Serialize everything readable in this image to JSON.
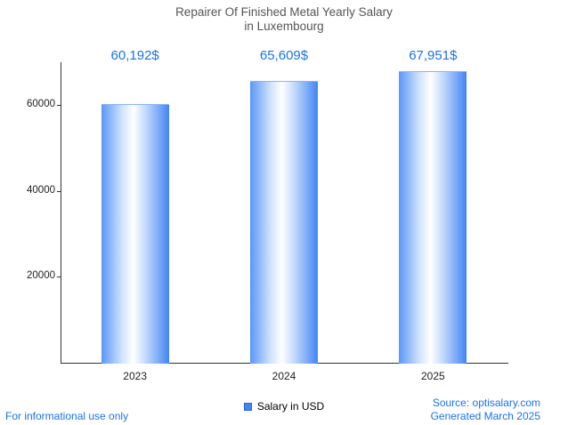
{
  "title": {
    "line1": "Repairer Of Finished Metal Yearly Salary",
    "line2": "in Luxembourg"
  },
  "chart_data": {
    "type": "bar",
    "title": "Repairer Of Finished Metal Yearly Salary in Luxembourg",
    "categories": [
      "2023",
      "2024",
      "2025"
    ],
    "series": [
      {
        "name": "Salary in USD",
        "values": [
          60192,
          65609,
          67951
        ]
      }
    ],
    "value_labels": [
      "60,192$",
      "65,609$",
      "67,951$"
    ],
    "xlabel": "",
    "ylabel": "",
    "ylim": [
      0,
      70000
    ],
    "yticks": [
      20000,
      40000,
      60000
    ],
    "grid": false,
    "legend": {
      "label": "Salary in USD",
      "position": "bottom"
    }
  },
  "footer": {
    "left": "For informational use only",
    "source": "Source: optisalary.com",
    "generated": "Generated March 2025"
  },
  "colors": {
    "accent": "#1a73e8",
    "bar_edge": "#4285f4",
    "bar_mid": "#ffffff",
    "title_gray": "#555555",
    "axis": "#333333"
  }
}
